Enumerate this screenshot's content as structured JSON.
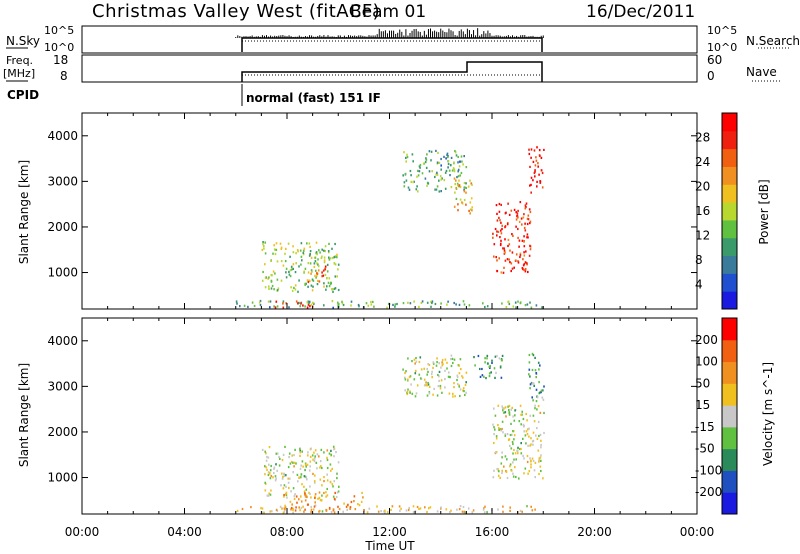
{
  "header": {
    "station": "Christmas Valley West (fitACF)",
    "beam": "Beam 01",
    "date": "16/Dec/2011"
  },
  "panels": {
    "nsky": {
      "left_label": "N.Sky",
      "left_ticks": [
        "10^5",
        "10^0"
      ],
      "right_ticks": [
        "10^5",
        "10^0"
      ],
      "right_label": "N.Search"
    },
    "freq": {
      "left_label_1": "Freq.",
      "left_label_2": "[MHz]",
      "left_ticks": [
        "18",
        "8"
      ],
      "right_ticks": [
        "60",
        "0"
      ],
      "right_label": "Nave"
    },
    "cpid": {
      "label": "CPID",
      "mode_text": "normal (fast) 151 IF"
    }
  },
  "chart_data": [
    {
      "type": "heatmap",
      "title": "",
      "ylabel": "Slant Range [km]",
      "xlabel": "",
      "ylim": [
        200,
        4500
      ],
      "yticks": [
        "4000",
        "3000",
        "2000",
        "1000"
      ],
      "ytick_values": [
        4000,
        3000,
        2000,
        1000
      ],
      "colorbar": {
        "label": "Power [dB]",
        "tick_labels": [
          "28",
          "24",
          "20",
          "16",
          "12",
          "8",
          "4"
        ],
        "colors": [
          "#1a1ae0",
          "#2050d0",
          "#3a7a9a",
          "#3a9a6a",
          "#60c040",
          "#b8d830",
          "#f0c020",
          "#f09020",
          "#f06010",
          "#f02010",
          "#ff0000"
        ]
      },
      "regions": [
        {
          "t0": 6.0,
          "t1": 18.0,
          "r0": 250,
          "r1": 400,
          "level": 0.35
        },
        {
          "t0": 7.0,
          "t1": 10.0,
          "r0": 600,
          "r1": 1700,
          "level": 0.45
        },
        {
          "t0": 8.8,
          "t1": 9.5,
          "r0": 800,
          "r1": 1200,
          "level": 0.8
        },
        {
          "t0": 7.5,
          "t1": 9.0,
          "r0": 250,
          "r1": 400,
          "level": 0.9
        },
        {
          "t0": 12.5,
          "t1": 15.0,
          "r0": 2800,
          "r1": 3700,
          "level": 0.35
        },
        {
          "t0": 14.5,
          "t1": 15.2,
          "r0": 2300,
          "r1": 3100,
          "level": 0.6
        },
        {
          "t0": 16.0,
          "t1": 17.5,
          "r0": 1000,
          "r1": 2600,
          "level": 0.88
        },
        {
          "t0": 17.4,
          "t1": 18.0,
          "r0": 2700,
          "r1": 3800,
          "level": 0.95
        }
      ]
    },
    {
      "type": "heatmap",
      "title": "",
      "ylabel": "Slant Range [km]",
      "xlabel": "Time UT",
      "ylim": [
        200,
        4500
      ],
      "yticks": [
        "4000",
        "3000",
        "2000",
        "1000"
      ],
      "ytick_values": [
        4000,
        3000,
        2000,
        1000
      ],
      "xticks": [
        "00:00",
        "04:00",
        "08:00",
        "12:00",
        "16:00",
        "20:00",
        "00:00"
      ],
      "xtick_values": [
        0,
        4,
        8,
        12,
        16,
        20,
        24
      ],
      "colorbar": {
        "label": "Velocity [m s^-1]",
        "tick_labels": [
          "200",
          "100",
          "50",
          "15",
          "-15",
          "-50",
          "-100",
          "-200"
        ],
        "colors": [
          "#1a1ae0",
          "#2050c0",
          "#2a8a5a",
          "#60c040",
          "#c8c8c8",
          "#f0c020",
          "#f09020",
          "#f06010",
          "#ff0000"
        ]
      },
      "regions": [
        {
          "t0": 6.0,
          "t1": 18.0,
          "r0": 250,
          "r1": 400,
          "level": 0.6
        },
        {
          "t0": 7.0,
          "t1": 10.0,
          "r0": 600,
          "r1": 1700,
          "level": 0.5
        },
        {
          "t0": 7.8,
          "t1": 11.0,
          "r0": 300,
          "r1": 700,
          "level": 0.7
        },
        {
          "t0": 12.5,
          "t1": 15.0,
          "r0": 2800,
          "r1": 3700,
          "level": 0.5
        },
        {
          "t0": 15.2,
          "t1": 16.5,
          "r0": 3200,
          "r1": 3700,
          "level": 0.3
        },
        {
          "t0": 16.0,
          "t1": 18.0,
          "r0": 1000,
          "r1": 2600,
          "level": 0.5
        },
        {
          "t0": 17.4,
          "t1": 18.0,
          "r0": 2700,
          "r1": 3800,
          "level": 0.35
        }
      ]
    }
  ]
}
